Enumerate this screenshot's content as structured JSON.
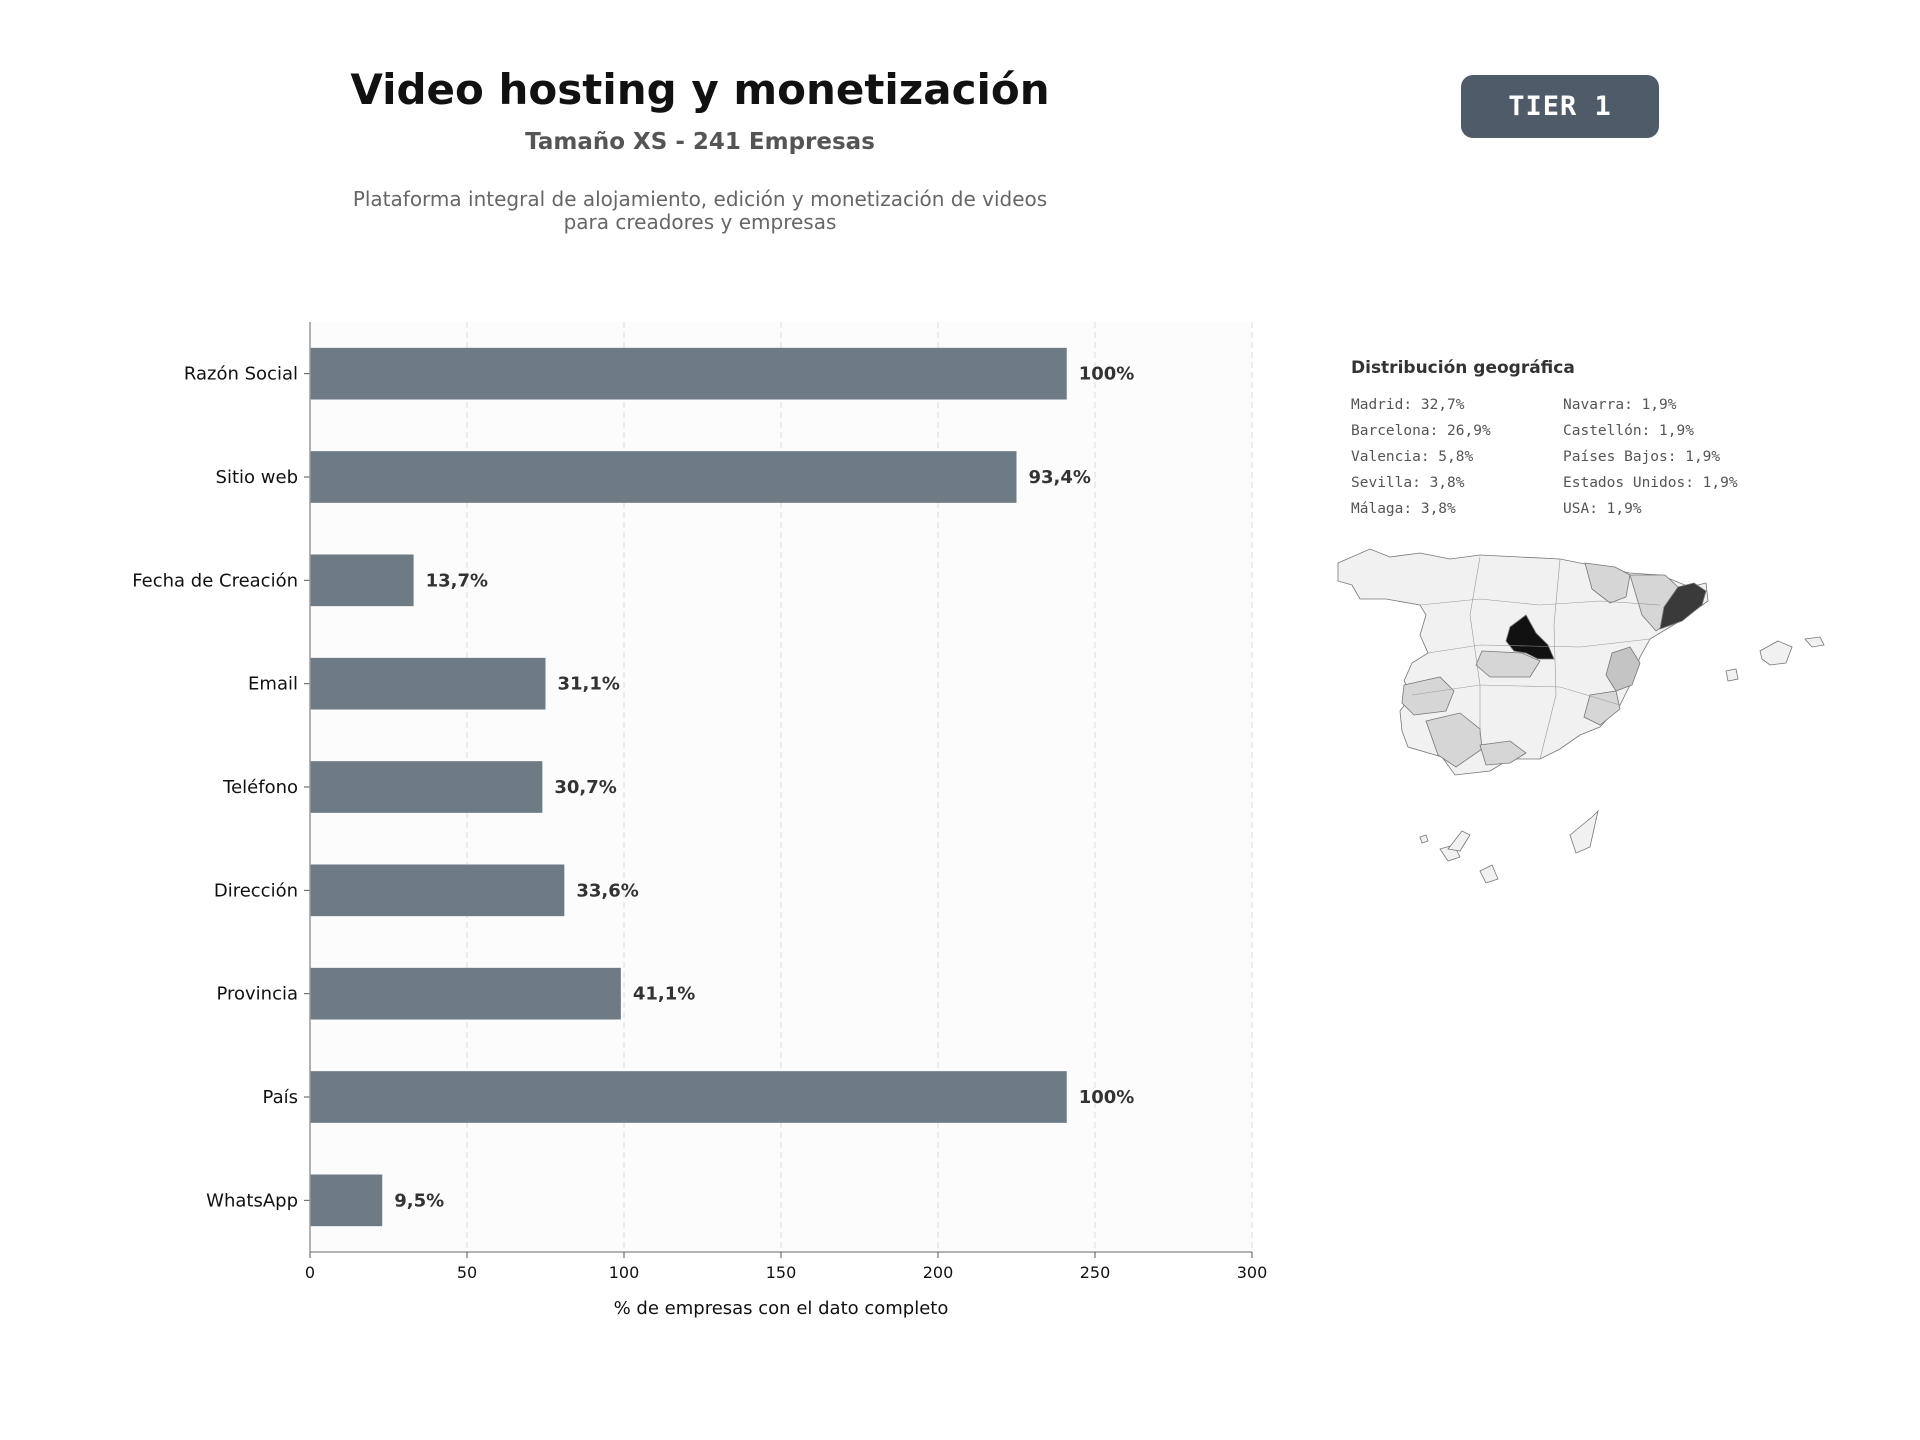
{
  "header": {
    "title": "Video hosting y monetización",
    "subtitle": "Tamaño XS - 241 Empresas",
    "description_line1": "Plataforma integral de alojamiento, edición y monetización de videos",
    "description_line2": "para creadores y empresas"
  },
  "badge": {
    "label": "TIER 1"
  },
  "chart_data": {
    "type": "bar",
    "orientation": "horizontal",
    "categories": [
      "Razón Social",
      "Sitio web",
      "Fecha de Creación",
      "Email",
      "Teléfono",
      "Dirección",
      "Provincia",
      "País",
      "WhatsApp"
    ],
    "values": [
      241,
      225,
      33,
      75,
      74,
      81,
      99,
      241,
      23
    ],
    "value_labels": [
      "100%",
      "93,4%",
      "13,7%",
      "31,1%",
      "30,7%",
      "33,6%",
      "41,1%",
      "100%",
      "9,5%"
    ],
    "xlabel": "% de empresas con el dato completo",
    "ylabel": "",
    "xlim": [
      0,
      300
    ],
    "xticks": [
      0,
      50,
      100,
      150,
      200,
      250,
      300
    ],
    "grid": "vertical dashed",
    "colors": {
      "bar": "#6e7a84",
      "plot_bg": "#fcfcfc",
      "label": "#333333"
    }
  },
  "geo": {
    "title": "Distribución geográfica",
    "col1": [
      "Madrid: 32,7%",
      "Barcelona: 26,9%",
      "Valencia: 5,8%",
      "Sevilla: 3,8%",
      "Málaga: 3,8%"
    ],
    "col2": [
      "Navarra: 1,9%",
      "Castellón: 1,9%",
      "Países Bajos: 1,9%",
      "Estados Unidos: 1,9%",
      "USA: 1,9%"
    ],
    "map_shades": {
      "madrid": "#111111",
      "barcelona": "#3a3a3a",
      "valencia": "#c4c4c4",
      "mid": "#d6d6d6",
      "other": "#f1f1f1"
    }
  }
}
